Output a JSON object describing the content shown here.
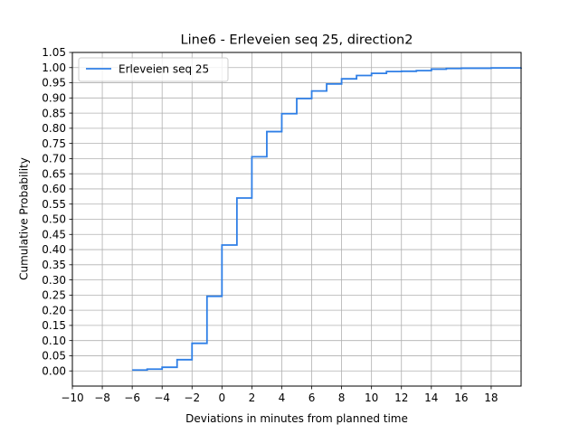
{
  "chart_data": {
    "type": "line",
    "step": "post",
    "title": "Line6 - Erleveien seq 25, direction2",
    "xlabel": "Deviations in minutes from planned time",
    "ylabel": "Cumulative Probability",
    "xlim": [
      -10,
      20
    ],
    "ylim": [
      -0.05,
      1.05
    ],
    "xticks": [
      -10,
      -8,
      -6,
      -4,
      -2,
      0,
      2,
      4,
      6,
      8,
      10,
      12,
      14,
      16,
      18
    ],
    "xtick_labels": [
      "−10",
      "−8",
      "−6",
      "−4",
      "−2",
      "0",
      "2",
      "4",
      "6",
      "8",
      "10",
      "12",
      "14",
      "16",
      "18"
    ],
    "yticks": [
      0.0,
      0.05,
      0.1,
      0.15,
      0.2,
      0.25,
      0.3,
      0.35,
      0.4,
      0.45,
      0.5,
      0.55,
      0.6,
      0.65,
      0.7,
      0.75,
      0.8,
      0.85,
      0.9,
      0.95,
      1.0,
      1.05
    ],
    "ytick_labels": [
      "0.00",
      "0.05",
      "0.10",
      "0.15",
      "0.20",
      "0.25",
      "0.30",
      "0.35",
      "0.40",
      "0.45",
      "0.50",
      "0.55",
      "0.60",
      "0.65",
      "0.70",
      "0.75",
      "0.80",
      "0.85",
      "0.90",
      "0.95",
      "1.00",
      "1.05"
    ],
    "grid": true,
    "legend": {
      "position": "top-left"
    },
    "series": [
      {
        "name": "Erleveien seq 25",
        "color": "#2f7fe6",
        "x": [
          -6,
          -5,
          -4,
          -3,
          -2,
          -1,
          0,
          1,
          2,
          3,
          4,
          5,
          6,
          7,
          8,
          9,
          10,
          11,
          12,
          13,
          14,
          15,
          16,
          17,
          18,
          19,
          20
        ],
        "y": [
          0.003,
          0.006,
          0.012,
          0.037,
          0.091,
          0.246,
          0.415,
          0.57,
          0.706,
          0.789,
          0.848,
          0.898,
          0.923,
          0.946,
          0.963,
          0.974,
          0.981,
          0.987,
          0.988,
          0.99,
          0.995,
          0.997,
          0.998,
          0.998,
          0.999,
          0.999,
          1.0
        ]
      }
    ]
  }
}
